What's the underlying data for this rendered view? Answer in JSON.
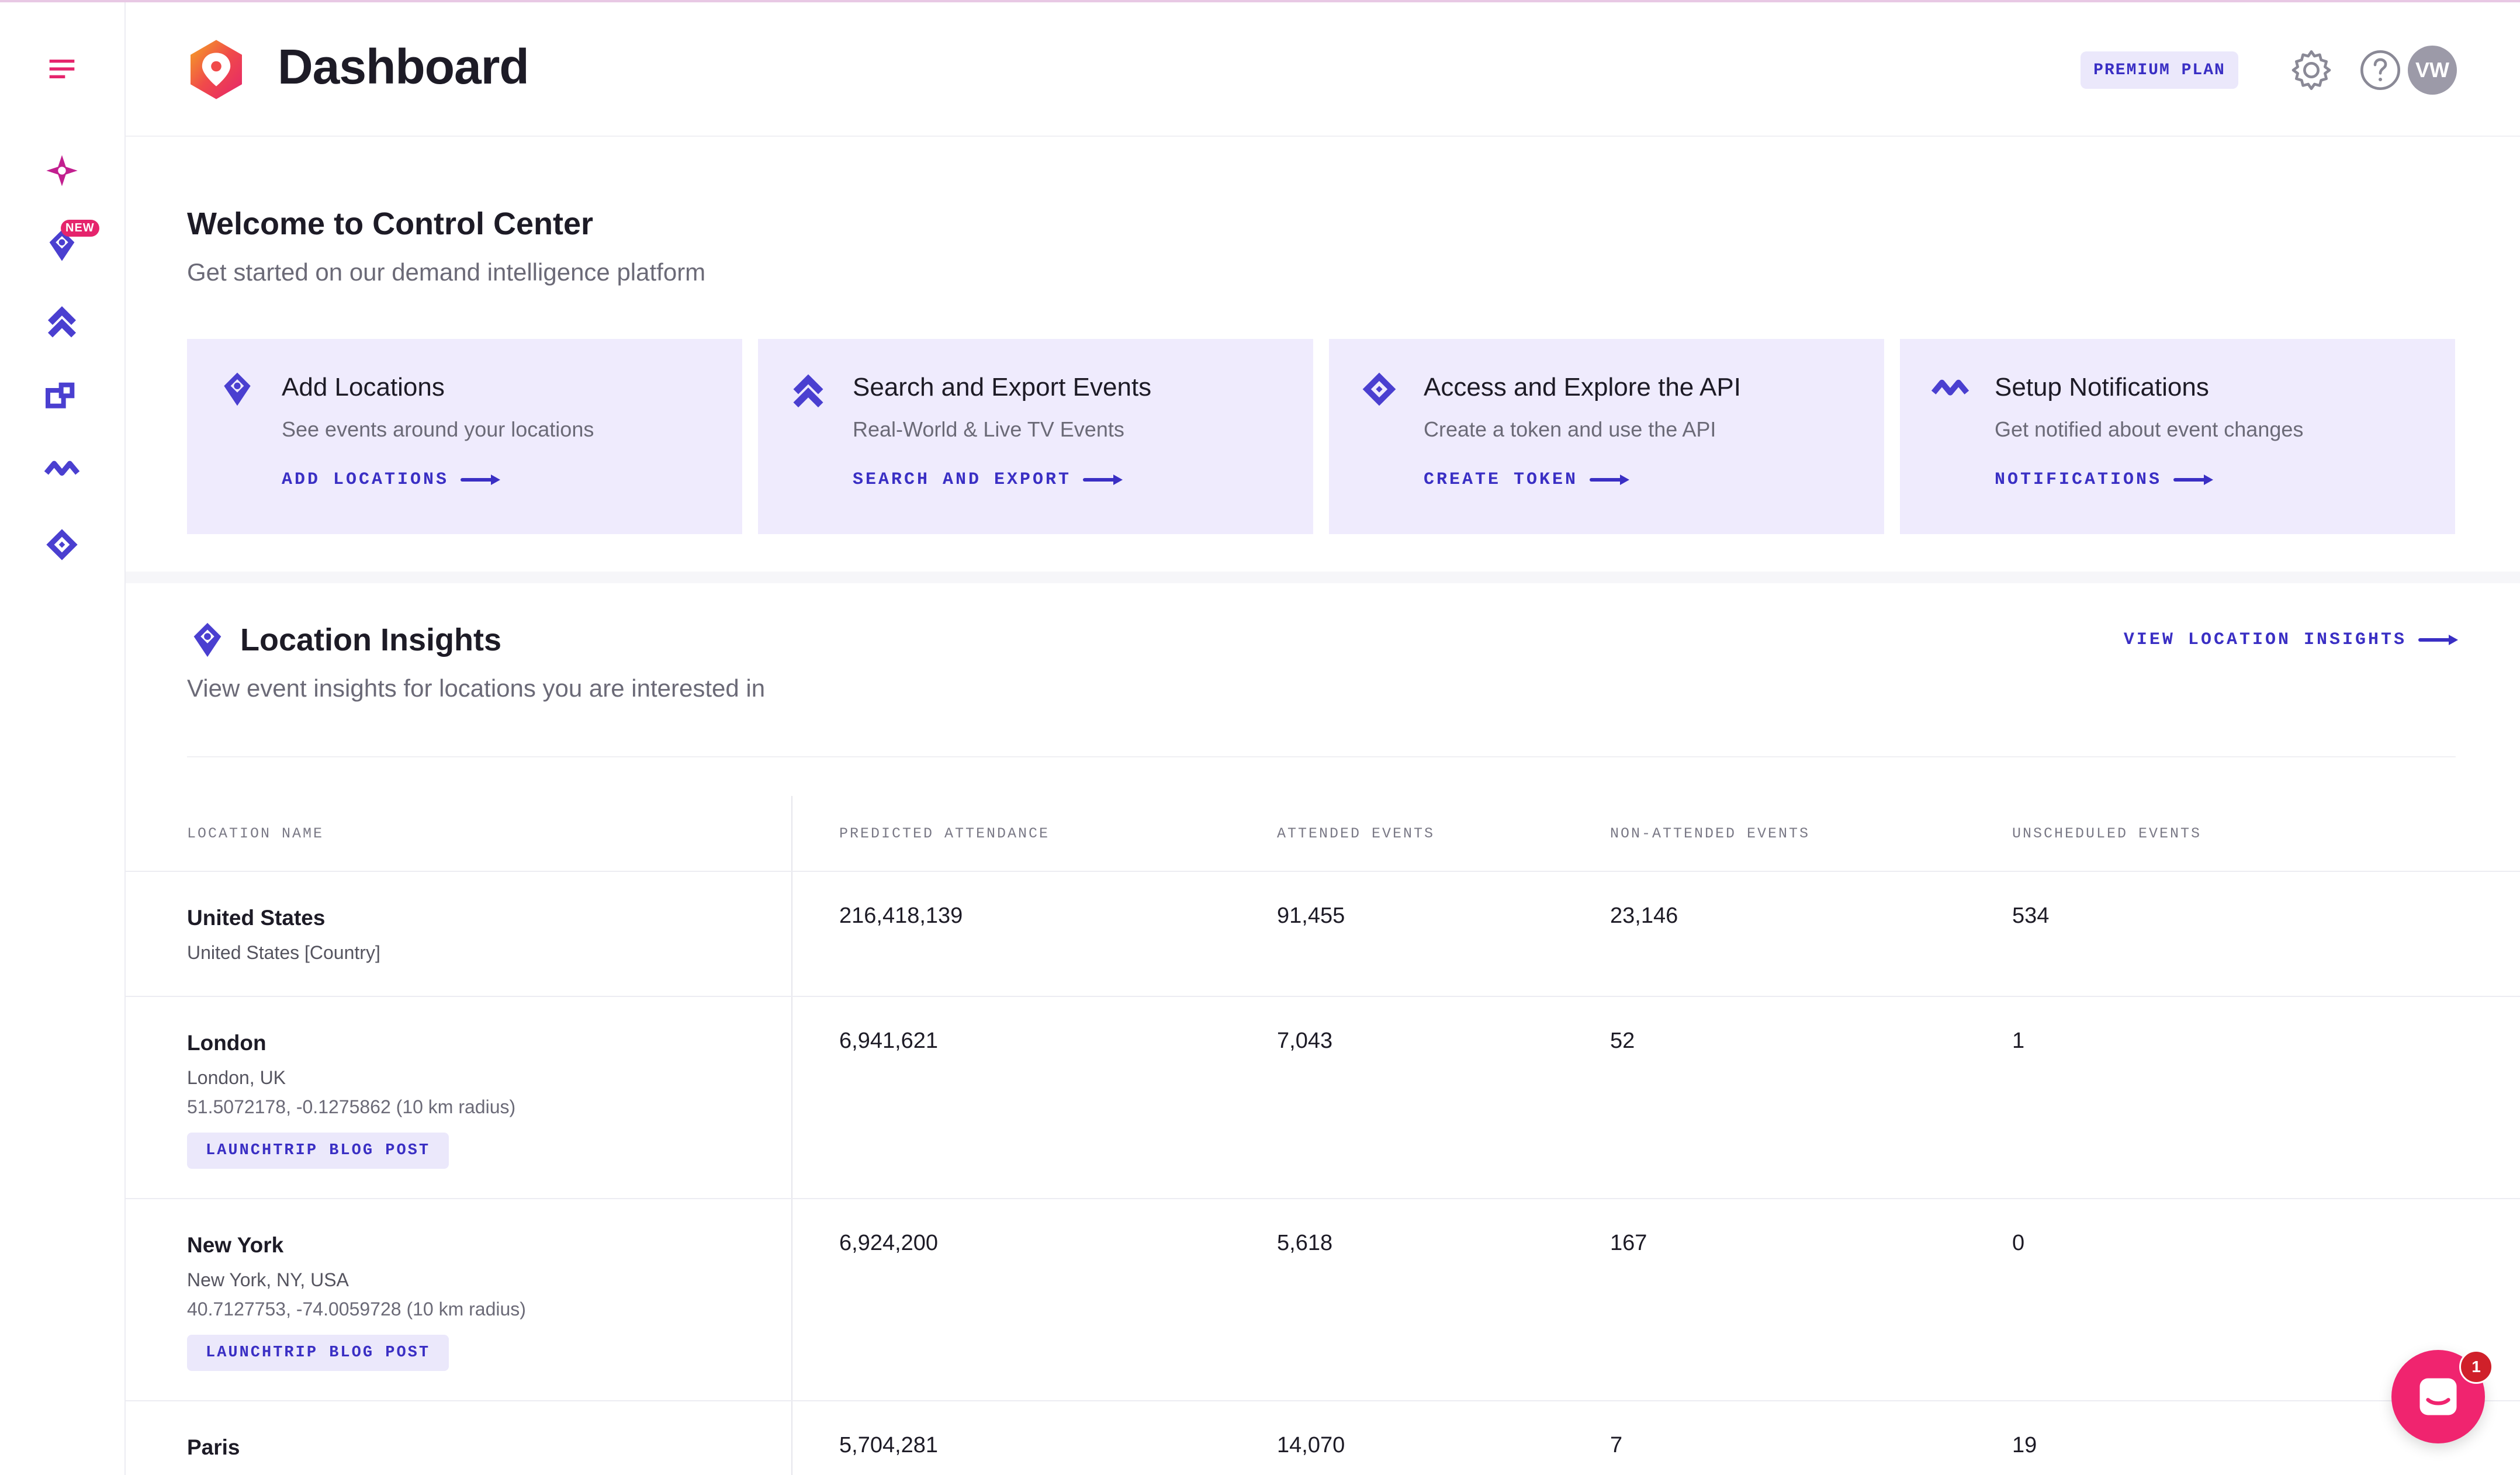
{
  "header": {
    "title": "Dashboard",
    "plan_badge": "PREMIUM PLAN",
    "avatar_initials": "VW"
  },
  "sidebar": {
    "new_badge": "NEW",
    "items": [
      {
        "icon": "menu-icon"
      },
      {
        "icon": "sparkle-icon"
      },
      {
        "icon": "location-pin-icon"
      },
      {
        "icon": "chevrons-up-icon"
      },
      {
        "icon": "squares-icon"
      },
      {
        "icon": "wave-check-icon"
      },
      {
        "icon": "diamond-code-icon"
      }
    ]
  },
  "welcome": {
    "title": "Welcome to Control Center",
    "subtitle": "Get started on our demand intelligence platform",
    "cards": [
      {
        "title": "Add Locations",
        "subtitle": "See events around your locations",
        "link": "ADD LOCATIONS",
        "icon": "location-pin-icon"
      },
      {
        "title": "Search and Export Events",
        "subtitle": "Real-World & Live TV Events",
        "link": "SEARCH AND EXPORT",
        "icon": "chevrons-up-icon"
      },
      {
        "title": "Access and Explore the API",
        "subtitle": "Create a token and use the API",
        "link": "CREATE TOKEN",
        "icon": "diamond-code-icon"
      },
      {
        "title": "Setup Notifications",
        "subtitle": "Get notified about event changes",
        "link": "NOTIFICATIONS",
        "icon": "wave-check-icon"
      }
    ]
  },
  "insights": {
    "title": "Location Insights",
    "subtitle": "View event insights for locations you are interested in",
    "view_link": "VIEW LOCATION INSIGHTS",
    "columns": [
      "LOCATION NAME",
      "PREDICTED ATTENDANCE",
      "ATTENDED EVENTS",
      "NON-ATTENDED EVENTS",
      "UNSCHEDULED EVENTS"
    ],
    "rows": [
      {
        "name": "United States",
        "sub": "United States [Country]",
        "coord": "",
        "tag": "",
        "predicted": "216,418,139",
        "attended": "91,455",
        "non_attended": "23,146",
        "unscheduled": "534"
      },
      {
        "name": "London",
        "sub": "London, UK",
        "coord": "51.5072178, -0.1275862 (10 km radius)",
        "tag": "LAUNCHTRIP BLOG POST",
        "predicted": "6,941,621",
        "attended": "7,043",
        "non_attended": "52",
        "unscheduled": "1"
      },
      {
        "name": "New York",
        "sub": "New York, NY, USA",
        "coord": "40.7127753, -74.0059728 (10 km radius)",
        "tag": "LAUNCHTRIP BLOG POST",
        "predicted": "6,924,200",
        "attended": "5,618",
        "non_attended": "167",
        "unscheduled": "0"
      },
      {
        "name": "Paris",
        "sub": "",
        "coord": "",
        "tag": "",
        "predicted": "5,704,281",
        "attended": "14,070",
        "non_attended": "7",
        "unscheduled": "19"
      }
    ]
  },
  "chat": {
    "unread": "1"
  },
  "colors": {
    "accent": "#3a2fc4",
    "brand_pink": "#e5246c",
    "card_bg": "#efebfd"
  }
}
